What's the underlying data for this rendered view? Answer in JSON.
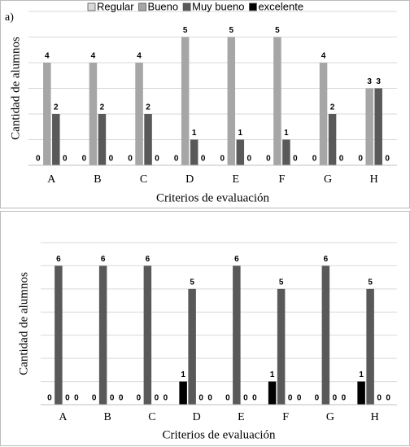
{
  "chart_data": [
    {
      "type": "bar",
      "title": "a)",
      "legend": "top",
      "grid": true,
      "x_label": "Criterios de evaluación",
      "y_label": "Cantidad de alumnos",
      "categories": [
        "A",
        "B",
        "C",
        "D",
        "E",
        "F",
        "G",
        "H"
      ],
      "ylim": [
        0,
        6
      ],
      "yticks": [
        0,
        1,
        2,
        3,
        4,
        5,
        6
      ],
      "series": [
        {
          "name": "Regular",
          "color": "#d9d9d9",
          "values": [
            0,
            0,
            0,
            0,
            0,
            0,
            0,
            0
          ]
        },
        {
          "name": "Bueno",
          "color": "#a6a6a6",
          "values": [
            4,
            4,
            4,
            5,
            5,
            5,
            4,
            3
          ]
        },
        {
          "name": "Muy bueno",
          "color": "#595959",
          "values": [
            2,
            2,
            2,
            1,
            1,
            1,
            2,
            3
          ]
        },
        {
          "name": "excelente",
          "color": "#000000",
          "values": [
            0,
            0,
            0,
            0,
            0,
            0,
            0,
            0
          ]
        }
      ]
    },
    {
      "type": "bar",
      "grid": true,
      "x_label": "Criterios de evaluación",
      "y_label": "Cantidad de alumnos",
      "categories": [
        "A",
        "B",
        "C",
        "D",
        "E",
        "F",
        "G",
        "H"
      ],
      "ylim": [
        0,
        7
      ],
      "yticks": [
        0,
        1,
        2,
        3,
        4,
        5,
        6,
        7
      ],
      "series": [
        {
          "color": "#000000",
          "values": [
            0,
            0,
            0,
            1,
            0,
            1,
            0,
            1
          ]
        },
        {
          "color": "#595959",
          "values": [
            6,
            6,
            6,
            5,
            6,
            5,
            6,
            5
          ]
        },
        {
          "color": "#a6a6a6",
          "values": [
            0,
            0,
            0,
            0,
            0,
            0,
            0,
            0
          ]
        },
        {
          "color": "#d9d9d9",
          "values": [
            0,
            0,
            0,
            0,
            0,
            0,
            0,
            0
          ]
        }
      ]
    }
  ]
}
